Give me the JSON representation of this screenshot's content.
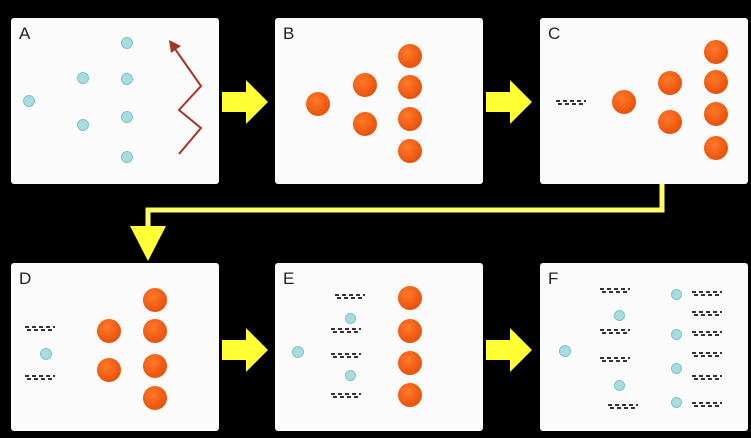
{
  "panels": [
    {
      "label": "A"
    },
    {
      "label": "B"
    },
    {
      "label": "C"
    },
    {
      "label": "D"
    },
    {
      "label": "E"
    },
    {
      "label": "F"
    }
  ],
  "colors": {
    "background": "#000000",
    "panel": "#fbfbfb",
    "particle_small": "#a8dde0",
    "particle_large": "#f05a12",
    "arrow": "#ffff33",
    "wave": "#a83228"
  }
}
